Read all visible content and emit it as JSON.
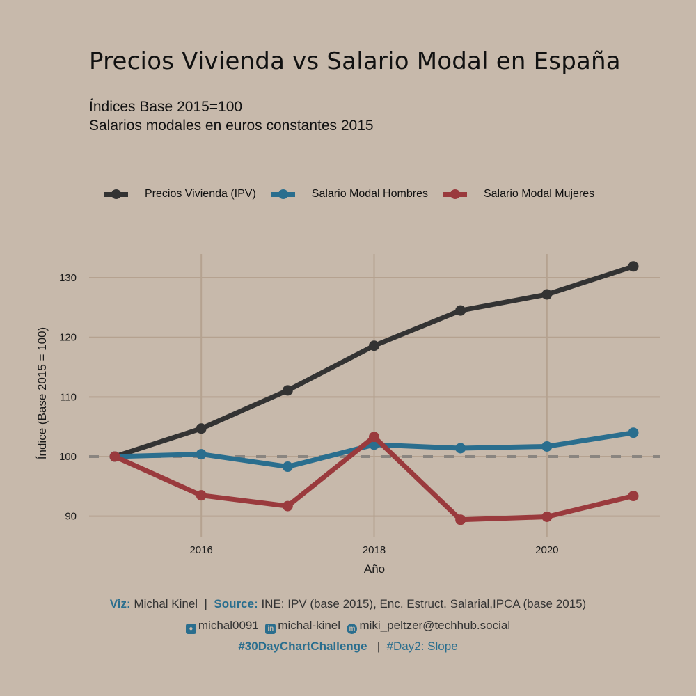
{
  "chart_data": {
    "type": "line",
    "title": "Precios Vivienda vs Salario Modal en España",
    "subtitle": [
      "Índices Base 2015=100",
      "Salarios modales en euros constantes 2015"
    ],
    "xlabel": "Año",
    "ylabel": "Índice (Base 2015 = 100)",
    "x": [
      2015,
      2016,
      2017,
      2018,
      2019,
      2020,
      2021
    ],
    "xlim": [
      2014.5,
      2021.3
    ],
    "ylim": [
      87.4,
      134.1
    ],
    "xticks": [
      2016,
      2018,
      2020
    ],
    "yticks": [
      90,
      100,
      110,
      120,
      130
    ],
    "grid": true,
    "legend_position": "top",
    "reference_line": {
      "y": 100,
      "style": "dashed",
      "color": "#8a8580"
    },
    "series": [
      {
        "name": "Precios Vivienda (IPV)",
        "color": "#333333",
        "values": [
          100,
          104.7,
          111.1,
          118.6,
          124.5,
          127.2,
          131.9
        ]
      },
      {
        "name": "Salario Modal Hombres",
        "color": "#2a6e8e",
        "values": [
          100,
          100.4,
          98.3,
          102.0,
          101.4,
          101.7,
          104.0
        ]
      },
      {
        "name": "Salario Modal Mujeres",
        "color": "#9a3a3d",
        "values": [
          100,
          93.5,
          91.7,
          103.3,
          89.4,
          89.9,
          93.4
        ]
      }
    ]
  },
  "caption": {
    "viz_label": "Viz:",
    "viz_value": "Michal Kinel",
    "separator": "|",
    "source_label": "Source:",
    "source_value": "INE: IPV (base 2015), Enc. Estruct. Salarial,IPCA (base 2015)",
    "github": "michal0091",
    "linkedin": "michal-kinel",
    "mastodon": "miki_peltzer@techhub.social",
    "hashtag": "#30DayChartChallenge",
    "day": "#Day2: Slope"
  },
  "colors": {
    "background": "#c7b9ab",
    "grid": "#b5a290",
    "accent": "#2a6e8e"
  }
}
